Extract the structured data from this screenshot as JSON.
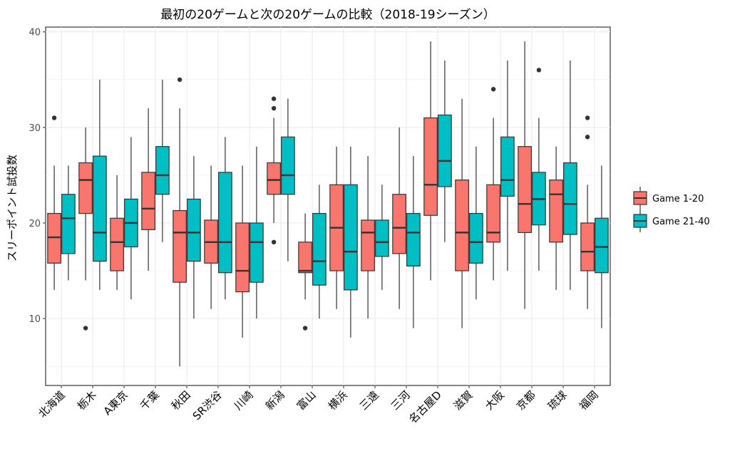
{
  "chart_data": {
    "type": "boxplot",
    "title": "最初の20ゲームと次の20ゲームの比較（2018-19シーズン）",
    "ylabel": "スリーポイント試投数",
    "xlabel": "",
    "ylim": [
      3,
      40.5
    ],
    "yticks": [
      10,
      20,
      30,
      40
    ],
    "grid": true,
    "legend_position": "right",
    "categories": [
      "北海道",
      "栃木",
      "A東京",
      "千葉",
      "秋田",
      "SR渋谷",
      "川崎",
      "新潟",
      "富山",
      "横浜",
      "三遠",
      "三河",
      "名古屋D",
      "滋賀",
      "大阪",
      "京都",
      "琉球",
      "福岡"
    ],
    "series": [
      {
        "name": "Game 1-20",
        "color": "#F8766D",
        "boxes": [
          {
            "min": 13,
            "q1": 15.8,
            "median": 18.5,
            "q3": 21,
            "max": 26,
            "outliers": [
              31
            ]
          },
          {
            "min": 14,
            "q1": 21,
            "median": 24.5,
            "q3": 26.3,
            "max": 30,
            "outliers": [
              9
            ]
          },
          {
            "min": 13,
            "q1": 15,
            "median": 18,
            "q3": 20.5,
            "max": 25,
            "outliers": []
          },
          {
            "min": 15,
            "q1": 19.3,
            "median": 21.5,
            "q3": 25.3,
            "max": 32,
            "outliers": []
          },
          {
            "min": 5,
            "q1": 13.8,
            "median": 19,
            "q3": 21.3,
            "max": 32,
            "outliers": [
              35
            ]
          },
          {
            "min": 11,
            "q1": 15.8,
            "median": 18,
            "q3": 20.3,
            "max": 26,
            "outliers": []
          },
          {
            "min": 8,
            "q1": 12.8,
            "median": 15,
            "q3": 20,
            "max": 26,
            "outliers": []
          },
          {
            "min": 20,
            "q1": 23,
            "median": 24.5,
            "q3": 26.3,
            "max": 31,
            "outliers": [
              32,
              33,
              18
            ]
          },
          {
            "min": 12,
            "q1": 14.8,
            "median": 15,
            "q3": 18,
            "max": 21,
            "outliers": [
              9
            ]
          },
          {
            "min": 11,
            "q1": 15,
            "median": 19.5,
            "q3": 24,
            "max": 28,
            "outliers": []
          },
          {
            "min": 10,
            "q1": 15,
            "median": 19,
            "q3": 20.3,
            "max": 27,
            "outliers": []
          },
          {
            "min": 11,
            "q1": 16.8,
            "median": 19.5,
            "q3": 23,
            "max": 30,
            "outliers": []
          },
          {
            "min": 14,
            "q1": 20.8,
            "median": 24,
            "q3": 31,
            "max": 39,
            "outliers": []
          },
          {
            "min": 9,
            "q1": 15,
            "median": 19,
            "q3": 24.5,
            "max": 33,
            "outliers": []
          },
          {
            "min": 14,
            "q1": 18,
            "median": 19,
            "q3": 24,
            "max": 31,
            "outliers": [
              34
            ]
          },
          {
            "min": 11,
            "q1": 19,
            "median": 22,
            "q3": 28,
            "max": 39,
            "outliers": []
          },
          {
            "min": 13,
            "q1": 18,
            "median": 23,
            "q3": 24.5,
            "max": 28,
            "outliers": []
          },
          {
            "min": 11,
            "q1": 15,
            "median": 17,
            "q3": 20,
            "max": 24,
            "outliers": [
              29,
              31
            ]
          }
        ]
      },
      {
        "name": "Game 21-40",
        "color": "#00BFC4",
        "boxes": [
          {
            "min": 14,
            "q1": 16.8,
            "median": 20.5,
            "q3": 23,
            "max": 26,
            "outliers": []
          },
          {
            "min": 13,
            "q1": 16,
            "median": 19,
            "q3": 27,
            "max": 35,
            "outliers": []
          },
          {
            "min": 12,
            "q1": 17.5,
            "median": 20,
            "q3": 22.5,
            "max": 29,
            "outliers": []
          },
          {
            "min": 18,
            "q1": 23,
            "median": 25,
            "q3": 28,
            "max": 35,
            "outliers": []
          },
          {
            "min": 10,
            "q1": 16,
            "median": 19,
            "q3": 22.5,
            "max": 27,
            "outliers": []
          },
          {
            "min": 12,
            "q1": 14.8,
            "median": 18,
            "q3": 25.3,
            "max": 29,
            "outliers": []
          },
          {
            "min": 10,
            "q1": 13.8,
            "median": 18,
            "q3": 20,
            "max": 28,
            "outliers": []
          },
          {
            "min": 16,
            "q1": 23,
            "median": 25,
            "q3": 29,
            "max": 33,
            "outliers": []
          },
          {
            "min": 10,
            "q1": 13.5,
            "median": 16,
            "q3": 21,
            "max": 24,
            "outliers": []
          },
          {
            "min": 8,
            "q1": 13,
            "median": 17,
            "q3": 24,
            "max": 28,
            "outliers": []
          },
          {
            "min": 13,
            "q1": 16.5,
            "median": 18,
            "q3": 20.3,
            "max": 24,
            "outliers": []
          },
          {
            "min": 9,
            "q1": 15.5,
            "median": 19,
            "q3": 21,
            "max": 27,
            "outliers": []
          },
          {
            "min": 18,
            "q1": 23.8,
            "median": 26.5,
            "q3": 31.3,
            "max": 37,
            "outliers": []
          },
          {
            "min": 12,
            "q1": 15.8,
            "median": 18,
            "q3": 21,
            "max": 28,
            "outliers": []
          },
          {
            "min": 15,
            "q1": 22.8,
            "median": 24.5,
            "q3": 29,
            "max": 37,
            "outliers": []
          },
          {
            "min": 15,
            "q1": 19.8,
            "median": 22.5,
            "q3": 25.3,
            "max": 31,
            "outliers": [
              36
            ]
          },
          {
            "min": 13,
            "q1": 18.8,
            "median": 22,
            "q3": 26.3,
            "max": 37,
            "outliers": []
          },
          {
            "min": 9,
            "q1": 14.8,
            "median": 17.5,
            "q3": 20.5,
            "max": 26,
            "outliers": []
          }
        ]
      }
    ]
  }
}
